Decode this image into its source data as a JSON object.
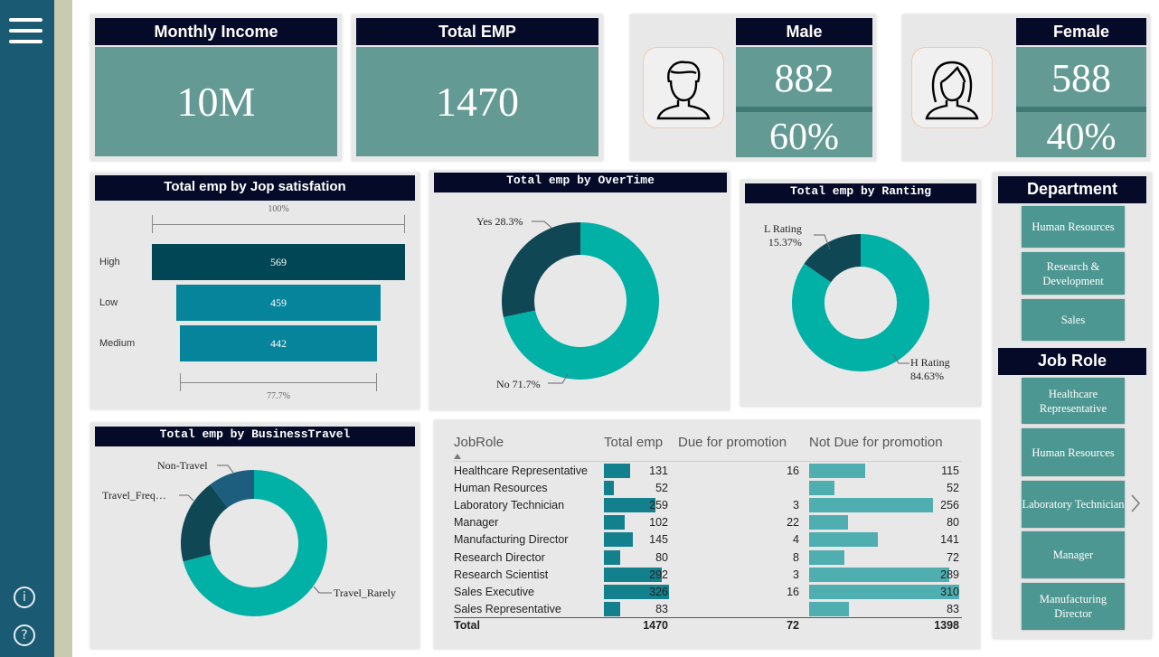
{
  "kpis": {
    "monthly_income": {
      "title": "Monthly Income",
      "value": "10M"
    },
    "total_emp": {
      "title": "Total EMP",
      "value": "1470"
    },
    "male": {
      "title": "Male",
      "count": "882",
      "percent": "60%"
    },
    "female": {
      "title": "Female",
      "count": "588",
      "percent": "40%"
    }
  },
  "job_satisfaction": {
    "title": "Total emp by Jop satisfation",
    "top_label": "100%",
    "bottom_label": "77.7%",
    "chart_data": {
      "type": "bar",
      "title": "Total emp by Jop satisfation",
      "categories": [
        "High",
        "Low",
        "Medium"
      ],
      "values": [
        569,
        459,
        442
      ]
    }
  },
  "overtime": {
    "title": "Total emp by OverTime",
    "labels": {
      "yes": "Yes 28.3%",
      "no": "No 71.7%"
    },
    "chart_data": {
      "type": "pie",
      "title": "Total emp by OverTime",
      "categories": [
        "Yes",
        "No"
      ],
      "values": [
        28.3,
        71.7
      ],
      "colors": [
        "#0f4754",
        "#02b1a6"
      ]
    }
  },
  "rating": {
    "title": "Total emp by Ranting",
    "labels": {
      "l_name": "L Rating",
      "l_value": "15.37%",
      "h_name": "H Rating",
      "h_value": "84.63%"
    },
    "chart_data": {
      "type": "pie",
      "title": "Total emp by Ranting",
      "categories": [
        "L Rating",
        "H Rating"
      ],
      "values": [
        15.37,
        84.63
      ],
      "colors": [
        "#0f4754",
        "#02b1a6"
      ]
    }
  },
  "business_travel": {
    "title": "Total emp by BusinessTravel",
    "labels": {
      "non_travel": "Non-Travel",
      "travel_freq": "Travel_Freq…",
      "travel_rarely": "Travel_Rarely"
    },
    "chart_data": {
      "type": "pie",
      "title": "Total emp by BusinessTravel",
      "categories": [
        "Travel_Rarely",
        "Travel_Frequently",
        "Non-Travel"
      ],
      "values": [
        1043,
        277,
        150
      ],
      "colors": [
        "#02b1a6",
        "#0f4754",
        "#1d5e7e"
      ]
    }
  },
  "job_table": {
    "headers": {
      "role": "JobRole",
      "total": "Total emp",
      "due": "Due for promotion",
      "not_due": "Not Due for promotion"
    },
    "rows": [
      {
        "role": "Healthcare Representative",
        "total": 131,
        "due": "16",
        "not_due": 115
      },
      {
        "role": "Human Resources",
        "total": 52,
        "due": "",
        "not_due": 52
      },
      {
        "role": "Laboratory Technician",
        "total": 259,
        "due": "3",
        "not_due": 256
      },
      {
        "role": "Manager",
        "total": 102,
        "due": "22",
        "not_due": 80
      },
      {
        "role": "Manufacturing Director",
        "total": 145,
        "due": "4",
        "not_due": 141
      },
      {
        "role": "Research Director",
        "total": 80,
        "due": "8",
        "not_due": 72
      },
      {
        "role": "Research Scientist",
        "total": 292,
        "due": "3",
        "not_due": 289
      },
      {
        "role": "Sales Executive",
        "total": 326,
        "due": "16",
        "not_due": 310
      },
      {
        "role": "Sales Representative",
        "total": 83,
        "due": "",
        "not_due": 83
      }
    ],
    "totals": {
      "label": "Total",
      "total": "1470",
      "due": "72",
      "not_due": "1398"
    }
  },
  "department": {
    "title": "Department",
    "items": [
      "Human Resources",
      "Research & Development",
      "Sales"
    ]
  },
  "job_role": {
    "title": "Job Role",
    "items": [
      "Healthcare Representative",
      "Human Resources",
      "Laboratory Technician",
      "Manager",
      "Manufacturing Director"
    ]
  },
  "icons": {
    "menu": "hamburger-menu-icon",
    "info": "info-icon",
    "help": "help-icon",
    "male": "male-avatar-icon",
    "female": "female-avatar-icon",
    "next": "chevron-right-icon"
  },
  "colors": {
    "sidebar": "#1b5a73",
    "header": "#050a28",
    "kpi": "#649a94",
    "teal": "#02b1a6",
    "dark_teal": "#0f4754",
    "funnel_high": "#014654",
    "funnel_other": "#06849c"
  }
}
